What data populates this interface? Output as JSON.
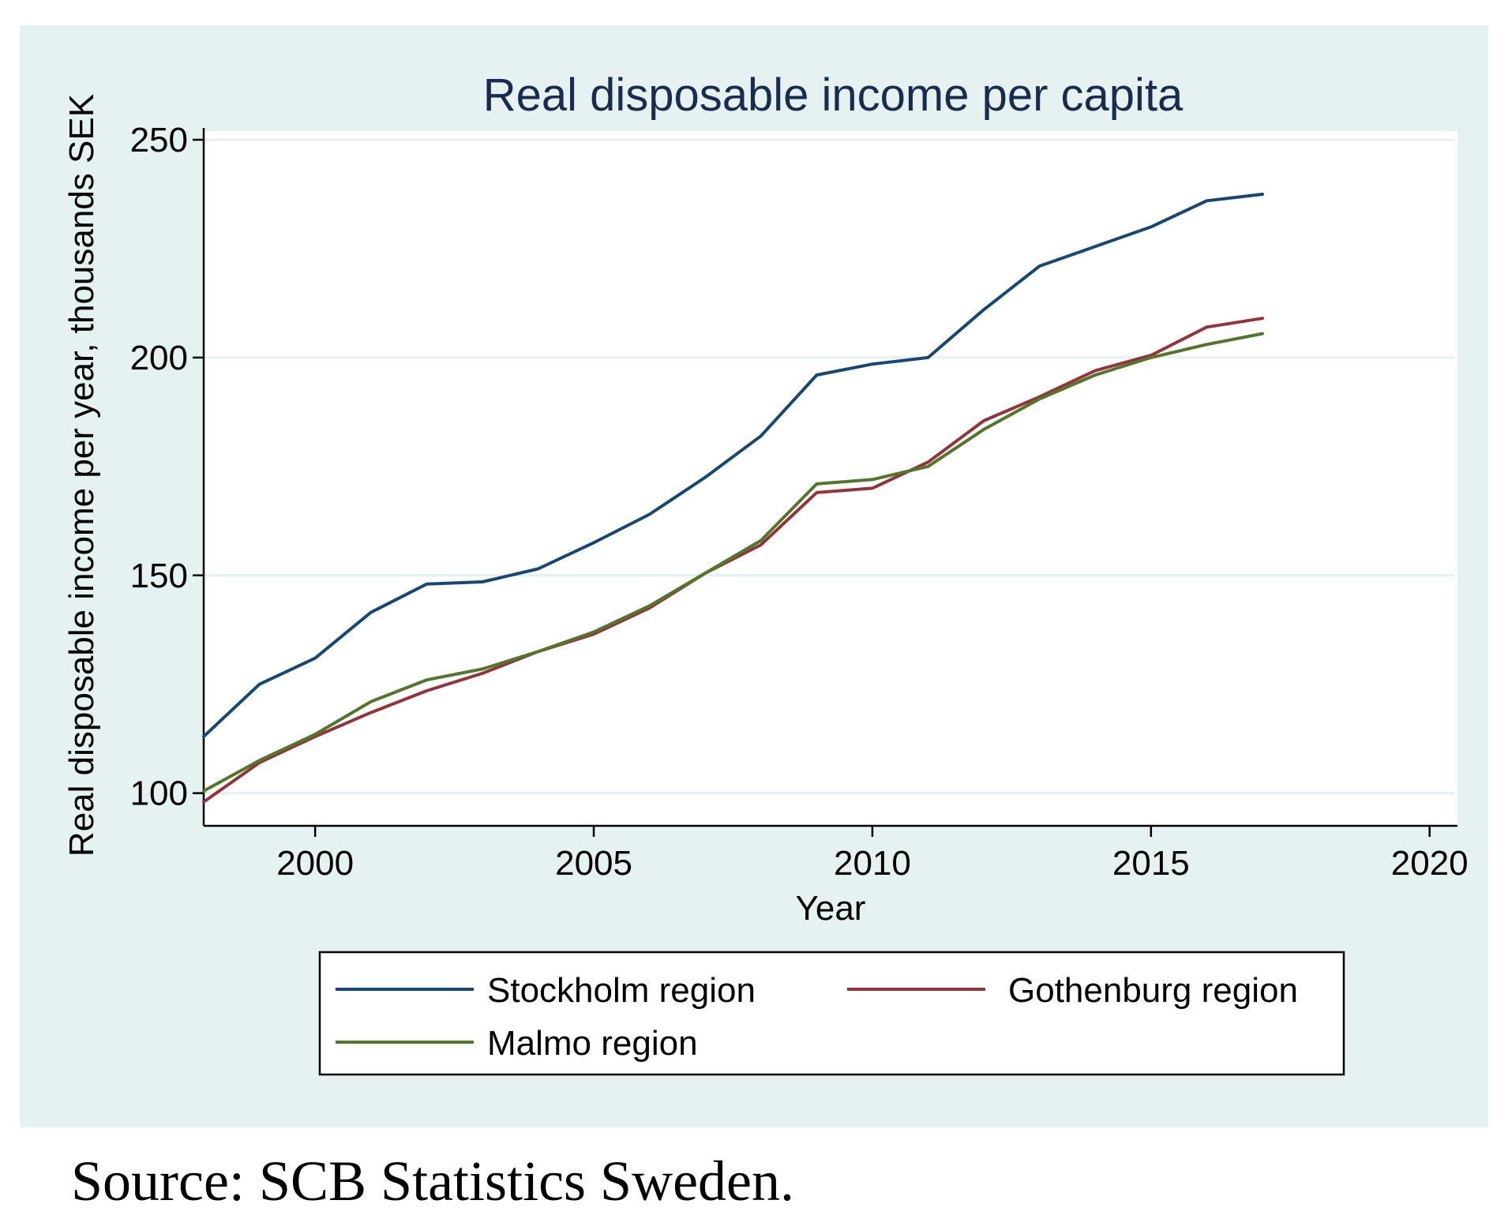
{
  "chart_data": {
    "type": "line",
    "title": "Real disposable income per capita",
    "xlabel": "Year",
    "ylabel": "Real disposable income per year, thousands SEK",
    "xlim": [
      1998,
      2020.5
    ],
    "ylim": [
      92.5,
      252
    ],
    "xticks": [
      2000,
      2005,
      2010,
      2015,
      2020
    ],
    "yticks": [
      100,
      150,
      200,
      250
    ],
    "grid": "horizontal",
    "legend_position": "bottom",
    "x": [
      1998,
      1999,
      2000,
      2001,
      2002,
      2003,
      2004,
      2005,
      2006,
      2007,
      2008,
      2009,
      2010,
      2011,
      2012,
      2013,
      2014,
      2015,
      2016,
      2017
    ],
    "series": [
      {
        "name": "Stockholm region",
        "color": "#1a476f",
        "values": [
          113,
          125,
          131,
          141.5,
          148,
          148.5,
          151.5,
          157.5,
          164,
          172.5,
          182,
          196,
          198.5,
          200,
          211,
          221,
          225.5,
          230,
          236,
          237.5
        ]
      },
      {
        "name": "Gothenburg region",
        "color": "#90353b",
        "values": [
          98,
          107,
          113,
          118.5,
          123.5,
          127.5,
          132.5,
          136.5,
          142.5,
          150.5,
          157,
          169,
          170,
          176,
          185.5,
          191,
          197,
          200.5,
          207,
          209
        ]
      },
      {
        "name": "Malmo region",
        "color": "#55752f",
        "values": [
          100.5,
          107.5,
          113.5,
          121,
          126,
          128.5,
          132.5,
          137,
          143,
          150.5,
          158,
          171,
          172,
          175,
          183.5,
          190.5,
          196,
          200,
          203,
          205.5
        ]
      }
    ]
  },
  "footer": {
    "source": "Source: SCB Statistics Sweden."
  },
  "colors": {
    "outer_background": "#e6f1f1",
    "plot_background": "#ffffff",
    "grid": "#e6f1f1",
    "title": "#1a2c4e"
  }
}
